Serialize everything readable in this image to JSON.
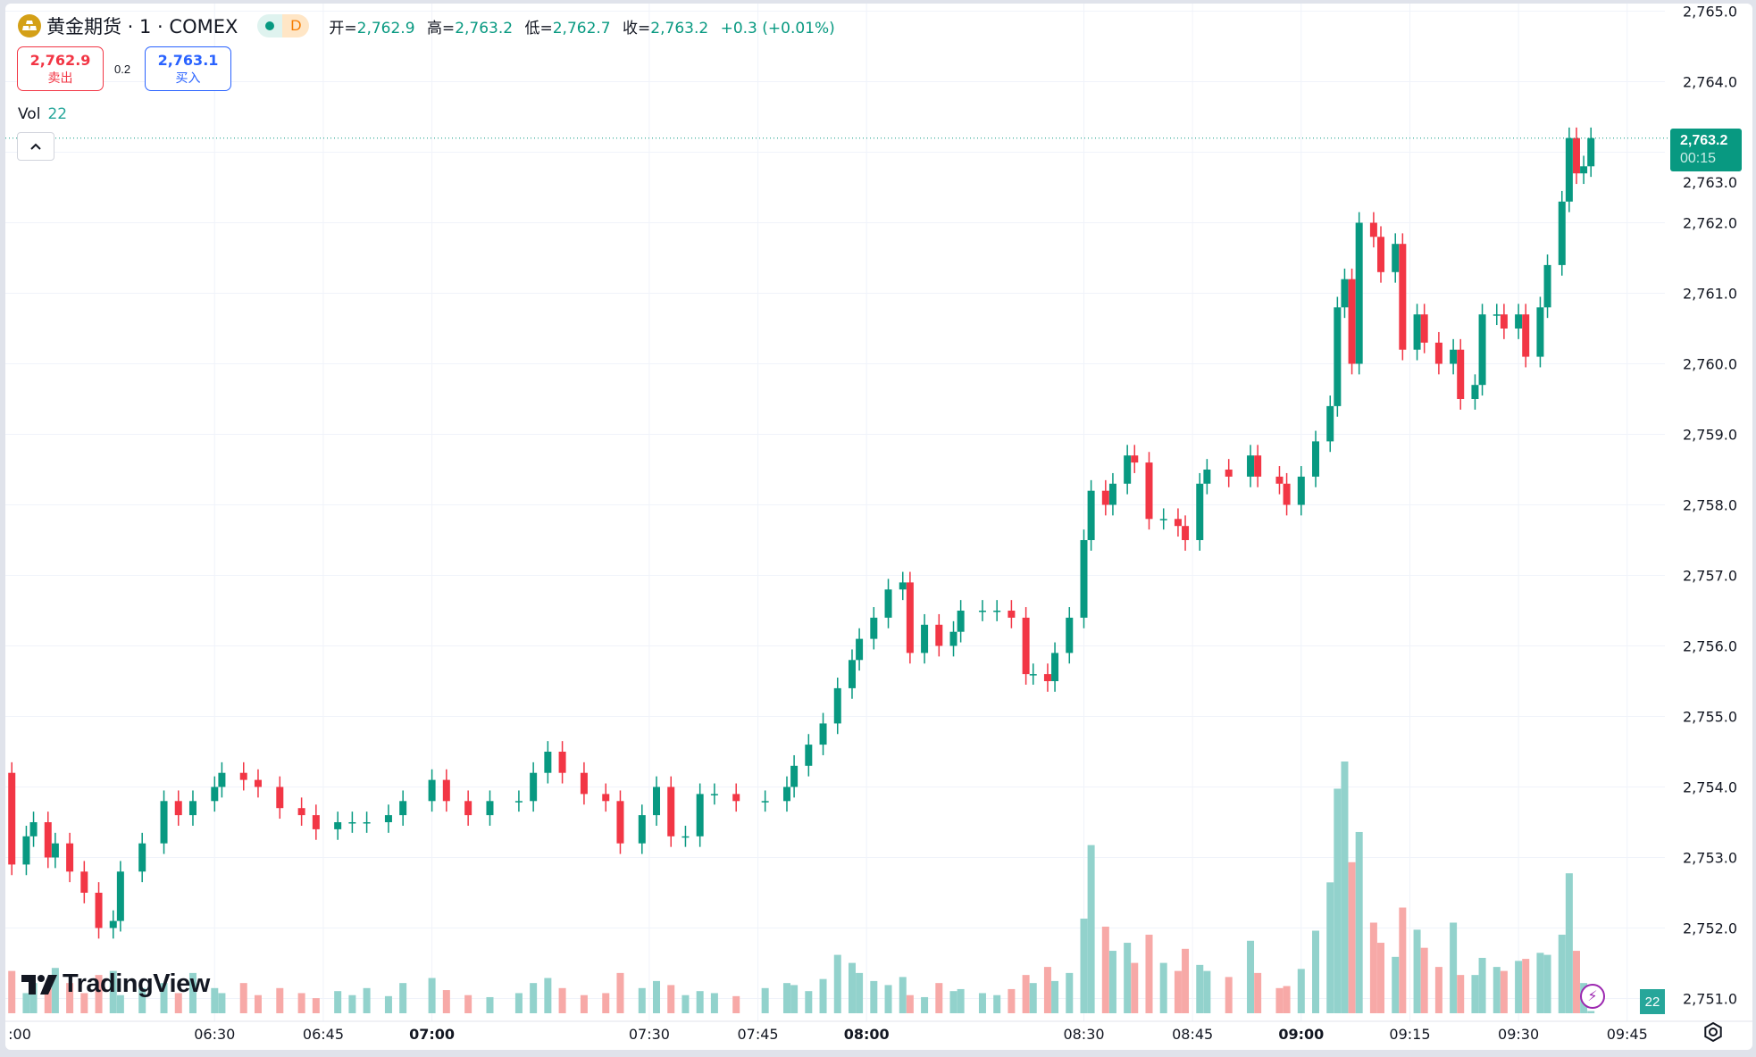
{
  "header": {
    "symbol_title": "黄金期货 · 1 · COMEX",
    "pill_label": "D",
    "ohlc": [
      {
        "label": "开=",
        "value": "2,762.9"
      },
      {
        "label": "高=",
        "value": "2,763.2"
      },
      {
        "label": "低=",
        "value": "2,762.7"
      },
      {
        "label": "收=",
        "value": "2,763.2"
      }
    ],
    "change": "+0.3 (+0.01%)"
  },
  "trade": {
    "sell_price": "2,762.9",
    "sell_label": "卖出",
    "spread": "0.2",
    "buy_price": "2,763.1",
    "buy_label": "买入"
  },
  "volume_legend": {
    "label": "Vol",
    "value": "22"
  },
  "current_price": {
    "price": "2,763.2",
    "countdown": "00:15"
  },
  "volume_badge": "22",
  "logo_text": "TradingView",
  "colors": {
    "up": "#089981",
    "down": "#f23645",
    "vol_up": "#92d2cc",
    "vol_down": "#f7a9a7",
    "accent": "#2962ff"
  },
  "icons": {
    "symbol": "gold-coin-icon",
    "collapse": "chevron-up-icon",
    "lightning": "lightning-icon",
    "settings": "settings-icon"
  },
  "chart_data": {
    "type": "candlestick",
    "interval": "1 minute",
    "ylim": [
      2751.0,
      2765.0
    ],
    "price_ticks": [
      "2,765.0",
      "2,764.0",
      "2,763.0",
      "2,762.0",
      "2,761.0",
      "2,760.0",
      "2,759.0",
      "2,758.0",
      "2,757.0",
      "2,756.0",
      "2,755.0",
      "2,754.0",
      "2,753.0",
      "2,752.0",
      "2,751.0"
    ],
    "time_ticks": [
      {
        "label": ":00",
        "t": "06:00",
        "bold": false
      },
      {
        "label": "06:30",
        "t": "06:30",
        "bold": false
      },
      {
        "label": "06:45",
        "t": "06:45",
        "bold": false
      },
      {
        "label": "07:00",
        "t": "07:00",
        "bold": true
      },
      {
        "label": "07:30",
        "t": "07:30",
        "bold": false
      },
      {
        "label": "07:45",
        "t": "07:45",
        "bold": false
      },
      {
        "label": "08:00",
        "t": "08:00",
        "bold": true
      },
      {
        "label": "08:30",
        "t": "08:30",
        "bold": false
      },
      {
        "label": "08:45",
        "t": "08:45",
        "bold": false
      },
      {
        "label": "09:00",
        "t": "09:00",
        "bold": true
      },
      {
        "label": "09:15",
        "t": "09:15",
        "bold": false
      },
      {
        "label": "09:30",
        "t": "09:30",
        "bold": false
      },
      {
        "label": "09:45",
        "t": "09:45",
        "bold": false
      }
    ],
    "first_open": 2754.2,
    "times": [
      "06:02",
      "06:04",
      "06:05",
      "06:07",
      "06:08",
      "06:10",
      "06:12",
      "06:14",
      "06:16",
      "06:17",
      "06:20",
      "06:23",
      "06:25",
      "06:27",
      "06:30",
      "06:31",
      "06:34",
      "06:36",
      "06:39",
      "06:42",
      "06:44",
      "06:47",
      "06:49",
      "06:51",
      "06:54",
      "06:56",
      "07:00",
      "07:02",
      "07:05",
      "07:08",
      "07:12",
      "07:14",
      "07:16",
      "07:18",
      "07:21",
      "07:24",
      "07:26",
      "07:29",
      "07:31",
      "07:33",
      "07:35",
      "07:37",
      "07:39",
      "07:42",
      "07:46",
      "07:49",
      "07:50",
      "07:52",
      "07:54",
      "07:56",
      "07:58",
      "07:59",
      "08:01",
      "08:03",
      "08:05",
      "08:06",
      "08:08",
      "08:10",
      "08:12",
      "08:13",
      "08:16",
      "08:18",
      "08:20",
      "08:22",
      "08:23",
      "08:25",
      "08:26",
      "08:28",
      "08:30",
      "08:31",
      "08:33",
      "08:34",
      "08:36",
      "08:37",
      "08:39",
      "08:41",
      "08:43",
      "08:44",
      "08:46",
      "08:47",
      "08:50",
      "08:53",
      "08:54",
      "08:57",
      "08:58",
      "09:00",
      "09:02",
      "09:04",
      "09:05",
      "09:06",
      "09:07",
      "09:08",
      "09:10",
      "09:11",
      "09:13",
      "09:14",
      "09:16",
      "09:17",
      "09:19",
      "09:21",
      "09:22",
      "09:24",
      "09:25",
      "09:27",
      "09:28",
      "09:30",
      "09:31",
      "09:33",
      "09:34",
      "09:36",
      "09:37",
      "09:38",
      "09:39",
      "09:40"
    ],
    "close": [
      2752.9,
      2753.3,
      2753.5,
      2753.0,
      2753.2,
      2752.8,
      2752.5,
      2752.0,
      2752.1,
      2752.8,
      2753.2,
      2753.8,
      2753.6,
      2753.8,
      2754.0,
      2754.2,
      2754.1,
      2754.0,
      2753.7,
      2753.6,
      2753.4,
      2753.5,
      2753.5,
      2753.5,
      2753.6,
      2753.8,
      2754.1,
      2753.8,
      2753.6,
      2753.8,
      2753.8,
      2754.2,
      2754.5,
      2754.2,
      2753.9,
      2753.8,
      2753.2,
      2753.6,
      2754.0,
      2753.3,
      2753.3,
      2753.9,
      2753.9,
      2753.8,
      2753.8,
      2754.0,
      2754.3,
      2754.6,
      2754.9,
      2755.4,
      2755.8,
      2756.1,
      2756.4,
      2756.8,
      2756.9,
      2755.9,
      2756.3,
      2756.0,
      2756.2,
      2756.5,
      2756.5,
      2756.5,
      2756.4,
      2755.6,
      2755.6,
      2755.5,
      2755.9,
      2756.4,
      2757.5,
      2758.2,
      2758.0,
      2758.3,
      2758.7,
      2758.6,
      2757.8,
      2757.8,
      2757.7,
      2757.5,
      2758.3,
      2758.5,
      2758.4,
      2758.7,
      2758.4,
      2758.3,
      2758.0,
      2758.4,
      2758.9,
      2759.4,
      2760.8,
      2761.2,
      2760.0,
      2762.0,
      2761.8,
      2761.3,
      2761.7,
      2760.2,
      2760.7,
      2760.3,
      2760.0,
      2760.2,
      2759.5,
      2759.7,
      2760.7,
      2760.7,
      2760.5,
      2760.7,
      2760.1,
      2760.8,
      2761.4,
      2762.3,
      2763.2,
      2762.7,
      2762.8,
      2763.2
    ],
    "volume": [
      420,
      200,
      300,
      250,
      450,
      300,
      200,
      380,
      420,
      180,
      250,
      300,
      200,
      400,
      250,
      200,
      300,
      180,
      250,
      200,
      150,
      220,
      180,
      250,
      170,
      300,
      350,
      230,
      180,
      160,
      200,
      300,
      350,
      250,
      180,
      200,
      400,
      250,
      320,
      280,
      180,
      220,
      200,
      170,
      250,
      300,
      280,
      220,
      340,
      580,
      500,
      400,
      320,
      280,
      360,
      180,
      160,
      300,
      220,
      240,
      200,
      180,
      240,
      380,
      300,
      460,
      320,
      400,
      940,
      1670,
      860,
      620,
      700,
      500,
      780,
      500,
      420,
      640,
      480,
      420,
      360,
      720,
      400,
      250,
      270,
      440,
      820,
      1300,
      2230,
      2500,
      1500,
      1800,
      900,
      700,
      560,
      1050,
      830,
      650,
      460,
      900,
      380,
      380,
      550,
      460,
      420,
      520,
      540,
      600,
      580,
      780,
      1390,
      620,
      300,
      22
    ]
  }
}
